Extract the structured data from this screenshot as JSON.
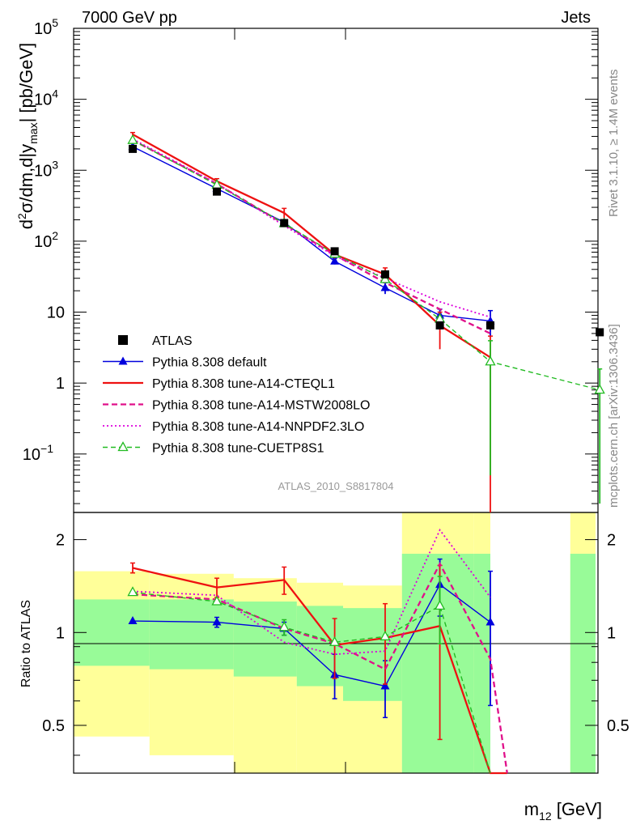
{
  "header": {
    "left_title": "7000 GeV pp",
    "right_title": "Jets"
  },
  "side_labels": {
    "rivet": "Rivet 3.1.10, ≥ 1.4M events",
    "mcplots": "mcplots.cern.ch [arXiv:1306.3436]"
  },
  "analysis_id": "ATLAS_2010_S8817804",
  "colors": {
    "atlas": "#000000",
    "default": "#0000dd",
    "cteql1": "#ee1111",
    "mstw": "#e0108a",
    "nnpdf": "#dd00dd",
    "cuetp8s1": "#22bb22",
    "band_inner": "#98fb98",
    "band_outer": "#ffff99"
  },
  "chart_data": [
    {
      "panel": "main",
      "type": "line",
      "title": "",
      "ylabel": "d²σ/dm,d|y_max| [pb/GeV]",
      "ylabel_parts": {
        "a": "d",
        "b": "2",
        "c": "σ/dm,d|y",
        "d": "max",
        "e": "| [pb/GeV]"
      },
      "yscale": "log",
      "ylim": [
        0.015,
        100000
      ],
      "yticks": [
        {
          "value": 0.1,
          "label_base": "10",
          "label_exp": "−1"
        },
        {
          "value": 1,
          "label_base": "1",
          "label_exp": ""
        },
        {
          "value": 10,
          "label_base": "10",
          "label_exp": ""
        },
        {
          "value": 100,
          "label_base": "10",
          "label_exp": "2"
        },
        {
          "value": 1000,
          "label_base": "10",
          "label_exp": "3"
        },
        {
          "value": 10000,
          "label_base": "10",
          "label_exp": "4"
        },
        {
          "value": 100000,
          "label_base": "10",
          "label_exp": "5"
        }
      ],
      "x_bins": [
        {
          "lo": 0,
          "hi": 1,
          "center": 0.5
        },
        {
          "lo": 1,
          "hi": 2,
          "center": 1.5
        },
        {
          "lo": 2,
          "hi": 3,
          "center": 2.3
        },
        {
          "lo": 3,
          "hi": 4,
          "center": 2.9
        },
        {
          "lo": 4,
          "hi": 5,
          "center": 3.5
        },
        {
          "lo": 5,
          "hi": 6,
          "center": 4.15
        },
        {
          "lo": 6,
          "hi": 7,
          "center": 4.75
        },
        {
          "lo": 7,
          "hi": 8,
          "center": 6.05
        }
      ],
      "legend": [
        {
          "key": "atlas",
          "label": "ATLAS",
          "marker": "square",
          "dash": "solid"
        },
        {
          "key": "default",
          "label": "Pythia 8.308 default",
          "marker": "triangle",
          "dash": "solid"
        },
        {
          "key": "cteql1",
          "label": "Pythia 8.308 tune-A14-CTEQL1",
          "marker": "none",
          "dash": "solid"
        },
        {
          "key": "mstw",
          "label": "Pythia 8.308 tune-A14-MSTW2008LO",
          "marker": "none",
          "dash": "dashed"
        },
        {
          "key": "nnpdf",
          "label": "Pythia 8.308 tune-A14-NNPDF2.3LO",
          "marker": "none",
          "dash": "dotted"
        },
        {
          "key": "cuetp8s1",
          "label": "Pythia 8.308 tune-CUETP8S1",
          "marker": "open-triangle",
          "dash": "dashed"
        }
      ],
      "atlas_values": [
        2000,
        500,
        180,
        72,
        34,
        6.5,
        6.5,
        5.2
      ],
      "series": [
        {
          "key": "default",
          "name": "Pythia 8.308 default",
          "x": [
            0.5,
            1.5,
            2.3,
            2.9,
            3.5,
            4.15,
            4.75
          ],
          "y": [
            2150,
            550,
            185,
            52,
            22,
            9.0,
            7.5
          ],
          "err": [
            0,
            30,
            10,
            5,
            4,
            2,
            3
          ]
        },
        {
          "key": "cteql1",
          "name": "Pythia 8.308 tune-A14-CTEQL1",
          "x": [
            0.5,
            1.5,
            2.3,
            2.9,
            3.5,
            4.15,
            4.75
          ],
          "y": [
            3200,
            700,
            250,
            65,
            34,
            6.5,
            2.3
          ],
          "err": [
            200,
            60,
            40,
            8,
            8,
            3.5,
            2.29
          ]
        },
        {
          "key": "mstw",
          "name": "Pythia 8.308 tune-A14-MSTW2008LO",
          "x": [
            0.5,
            1.5,
            2.3,
            2.9,
            3.5,
            4.15,
            4.75
          ],
          "y": [
            2650,
            640,
            175,
            64,
            26,
            11,
            5.0
          ],
          "err": [
            0,
            0,
            0,
            0,
            0,
            0,
            0
          ]
        },
        {
          "key": "nnpdf",
          "name": "Pythia 8.308 tune-A14-NNPDF2.3LO",
          "x": [
            0.5,
            1.5,
            2.3,
            2.9,
            3.5,
            4.15,
            4.75
          ],
          "y": [
            2750,
            650,
            165,
            62,
            30,
            14,
            8.5
          ],
          "err": [
            0,
            0,
            0,
            0,
            0,
            0,
            0
          ]
        },
        {
          "key": "cuetp8s1",
          "name": "Pythia 8.308 tune-CUETP8S1",
          "x": [
            0.5,
            1.5,
            2.3,
            2.9,
            3.5,
            4.15,
            4.75,
            6.05
          ],
          "y": [
            2650,
            620,
            178,
            66,
            29,
            8.0,
            2.0,
            0.8
          ],
          "err": [
            0,
            0,
            0,
            0,
            0,
            0,
            1.95,
            0.78
          ]
        }
      ]
    },
    {
      "panel": "ratio",
      "type": "line",
      "ylabel": "Ratio to ATLAS",
      "xlabel": "m₁₂ [GeV]",
      "xlabel_parts": {
        "a": "m",
        "b": "12",
        "c": " [GeV]"
      },
      "yscale": "log",
      "ylim": [
        0.35,
        2.45
      ],
      "yticks": [
        {
          "value": 0.5,
          "label": "0.5"
        },
        {
          "value": 1,
          "label": "1"
        },
        {
          "value": 2,
          "label": "2"
        }
      ],
      "bands": {
        "inner": [
          {
            "x_lo": 0.0,
            "x_hi": 0.9,
            "lo": 0.78,
            "hi": 1.28
          },
          {
            "x_lo": 0.9,
            "x_hi": 1.9,
            "lo": 0.76,
            "hi": 1.28
          },
          {
            "x_lo": 1.9,
            "x_hi": 2.65,
            "lo": 0.72,
            "hi": 1.26
          },
          {
            "x_lo": 2.65,
            "x_hi": 3.2,
            "lo": 0.67,
            "hi": 1.22
          },
          {
            "x_lo": 3.2,
            "x_hi": 3.9,
            "lo": 0.6,
            "hi": 1.2
          },
          {
            "x_lo": 3.9,
            "x_hi": 4.75,
            "lo": 0.35,
            "hi": 1.8
          },
          {
            "x_lo": 4.75,
            "x_hi": 4.95,
            "lo": 0.35,
            "hi": 1.8
          },
          {
            "x_lo": 5.9,
            "x_hi": 6.2,
            "lo": 0.35,
            "hi": 1.8
          }
        ],
        "outer": [
          {
            "x_lo": 0.0,
            "x_hi": 0.9,
            "lo": 0.46,
            "hi": 1.58
          },
          {
            "x_lo": 0.9,
            "x_hi": 1.9,
            "lo": 0.4,
            "hi": 1.55
          },
          {
            "x_lo": 1.9,
            "x_hi": 2.65,
            "lo": 0.35,
            "hi": 1.5
          },
          {
            "x_lo": 2.65,
            "x_hi": 3.2,
            "lo": 0.35,
            "hi": 1.45
          },
          {
            "x_lo": 3.2,
            "x_hi": 3.9,
            "lo": 0.35,
            "hi": 1.42
          },
          {
            "x_lo": 3.9,
            "x_hi": 4.75,
            "lo": 0.35,
            "hi": 2.45
          },
          {
            "x_lo": 4.75,
            "x_hi": 4.95,
            "lo": 0.35,
            "hi": 2.45
          },
          {
            "x_lo": 5.9,
            "x_hi": 6.2,
            "lo": 0.35,
            "hi": 2.45
          }
        ]
      },
      "series": [
        {
          "key": "default",
          "x": [
            0.5,
            1.5,
            2.3,
            2.9,
            3.5,
            4.15,
            4.75
          ],
          "y": [
            1.09,
            1.08,
            1.03,
            0.73,
            0.67,
            1.43,
            1.08
          ],
          "err": [
            0,
            0.04,
            0.05,
            0.12,
            0.14,
            0.3,
            0.5
          ]
        },
        {
          "key": "cteql1",
          "x": [
            0.5,
            1.5,
            2.3,
            2.9,
            3.5,
            4.15,
            4.75,
            4.95
          ],
          "y": [
            1.62,
            1.4,
            1.48,
            0.91,
            0.96,
            1.05,
            0.35,
            0.35
          ],
          "err": [
            0.06,
            0.1,
            0.15,
            0.2,
            0.28,
            0.6,
            0,
            0
          ]
        },
        {
          "key": "mstw",
          "x": [
            0.5,
            1.5,
            2.3,
            2.9,
            3.5,
            4.15,
            4.75,
            4.95
          ],
          "y": [
            1.33,
            1.28,
            1.03,
            0.92,
            0.76,
            1.67,
            0.82,
            0.35
          ],
          "err": [
            0,
            0,
            0,
            0,
            0,
            0,
            0,
            0
          ]
        },
        {
          "key": "nnpdf",
          "x": [
            0.5,
            1.5,
            2.3,
            2.9,
            3.5,
            4.15,
            4.75
          ],
          "y": [
            1.36,
            1.32,
            0.93,
            0.85,
            0.87,
            2.15,
            1.3
          ],
          "err": [
            0,
            0,
            0,
            0,
            0,
            0,
            0
          ]
        },
        {
          "key": "cuetp8s1",
          "x": [
            0.5,
            1.5,
            2.3,
            2.9,
            3.5,
            4.15,
            4.75
          ],
          "y": [
            1.35,
            1.26,
            1.04,
            0.93,
            0.97,
            1.22,
            0.35
          ],
          "err": [
            0,
            0,
            0.06,
            0,
            0,
            0.3,
            0
          ]
        }
      ]
    }
  ]
}
